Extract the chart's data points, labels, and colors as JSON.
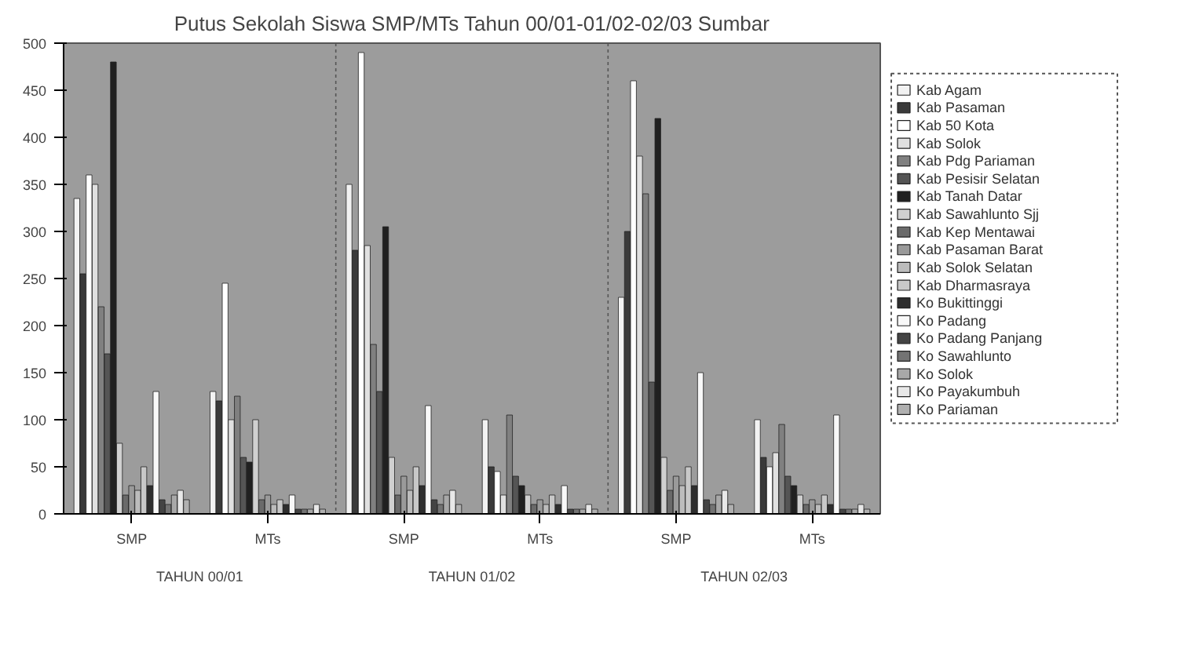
{
  "chart_data": {
    "type": "bar",
    "title": "Putus Sekolah Siswa SMP/MTs Tahun 00/01-01/02-02/03 Sumbar",
    "categories": [
      "SMP",
      "MTs",
      "SMP",
      "MTs",
      "SMP",
      "MTs"
    ],
    "annotations": [
      "TAHUN 00/01",
      "TAHUN 01/02",
      "TAHUN 02/03"
    ],
    "ylim": [
      0,
      500
    ],
    "yticks": [
      0,
      50,
      100,
      150,
      200,
      250,
      300,
      350,
      400,
      450,
      500
    ],
    "legend": "right",
    "grid": false,
    "series": [
      {
        "name": "Kab Agam",
        "color": "#f2f2f2",
        "values": [
          335,
          130,
          350,
          100,
          230,
          100
        ]
      },
      {
        "name": "Kab Pasaman",
        "color": "#3a3a3a",
        "values": [
          255,
          120,
          280,
          50,
          300,
          60
        ]
      },
      {
        "name": "Kab 50 Kota",
        "color": "#ffffff",
        "values": [
          360,
          245,
          490,
          45,
          460,
          50
        ]
      },
      {
        "name": "Kab Solok",
        "color": "#e0e0e0",
        "values": [
          350,
          100,
          285,
          20,
          380,
          65
        ]
      },
      {
        "name": "Kab Pdg Pariaman",
        "color": "#808080",
        "values": [
          220,
          125,
          180,
          105,
          340,
          95
        ]
      },
      {
        "name": "Kab Pesisir Selatan",
        "color": "#555555",
        "values": [
          170,
          60,
          130,
          40,
          140,
          40
        ]
      },
      {
        "name": "Kab Tanah Datar",
        "color": "#202020",
        "values": [
          480,
          55,
          305,
          30,
          420,
          30
        ]
      },
      {
        "name": "Kab Sawahlunto Sjj",
        "color": "#d0d0d0",
        "values": [
          75,
          100,
          60,
          20,
          60,
          20
        ]
      },
      {
        "name": "Kab Kep Mentawai",
        "color": "#6a6a6a",
        "values": [
          20,
          15,
          20,
          10,
          25,
          10
        ]
      },
      {
        "name": "Kab Pasaman Barat",
        "color": "#9a9a9a",
        "values": [
          30,
          20,
          40,
          15,
          40,
          15
        ]
      },
      {
        "name": "Kab Solok Selatan",
        "color": "#bcbcbc",
        "values": [
          25,
          10,
          25,
          10,
          30,
          10
        ]
      },
      {
        "name": "Kab Dharmasraya",
        "color": "#c8c8c8",
        "values": [
          50,
          15,
          50,
          20,
          50,
          20
        ]
      },
      {
        "name": "Ko Bukittinggi",
        "color": "#2e2e2e",
        "values": [
          30,
          10,
          30,
          10,
          30,
          10
        ]
      },
      {
        "name": "Ko Padang",
        "color": "#f8f8f8",
        "values": [
          130,
          20,
          115,
          30,
          150,
          105
        ]
      },
      {
        "name": "Ko Padang Panjang",
        "color": "#444444",
        "values": [
          15,
          5,
          15,
          5,
          15,
          5
        ]
      },
      {
        "name": "Ko Sawahlunto",
        "color": "#737373",
        "values": [
          10,
          5,
          10,
          5,
          10,
          5
        ]
      },
      {
        "name": "Ko Solok",
        "color": "#a8a8a8",
        "values": [
          20,
          5,
          20,
          5,
          20,
          5
        ]
      },
      {
        "name": "Ko Payakumbuh",
        "color": "#e8e8e8",
        "values": [
          25,
          10,
          25,
          10,
          25,
          10
        ]
      },
      {
        "name": "Ko Pariaman",
        "color": "#b0b0b0",
        "values": [
          15,
          5,
          10,
          5,
          10,
          5
        ]
      }
    ]
  }
}
